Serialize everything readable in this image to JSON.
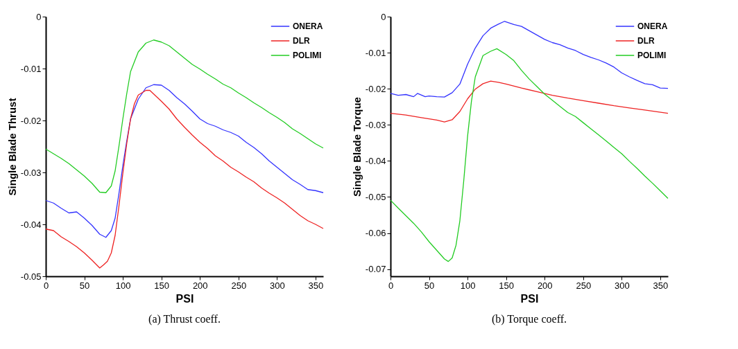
{
  "chart_data": [
    {
      "type": "line",
      "xlabel": "PSI",
      "ylabel": "Single Blade Thrust",
      "annotations": [
        "(a)  Thrust coeff."
      ],
      "xlim": [
        0,
        360
      ],
      "xticks": [
        0,
        50,
        100,
        150,
        200,
        250,
        300,
        350
      ],
      "ylim": [
        -0.05,
        0
      ],
      "yticks": [
        -0.05,
        -0.04,
        -0.03,
        -0.02,
        -0.01,
        0
      ],
      "grid": false,
      "legend": "top right",
      "line_style": "solid",
      "series": [
        {
          "name": "ONERA",
          "color": "#3333ff",
          "x": [
            0,
            10,
            20,
            30,
            40,
            50,
            60,
            70,
            78,
            85,
            90,
            95,
            100,
            105,
            110,
            120,
            130,
            140,
            150,
            160,
            170,
            180,
            190,
            200,
            210,
            220,
            230,
            240,
            250,
            260,
            270,
            280,
            290,
            300,
            310,
            320,
            330,
            340,
            350,
            360
          ],
          "values": [
            -0.0354,
            -0.0359,
            -0.0369,
            -0.0378,
            -0.0376,
            -0.0388,
            -0.0402,
            -0.0419,
            -0.0425,
            -0.0412,
            -0.0388,
            -0.034,
            -0.0287,
            -0.024,
            -0.0197,
            -0.0159,
            -0.0137,
            -0.0131,
            -0.0132,
            -0.0142,
            -0.0156,
            -0.0168,
            -0.0182,
            -0.0197,
            -0.0206,
            -0.0211,
            -0.0218,
            -0.0223,
            -0.023,
            -0.0242,
            -0.0252,
            -0.0264,
            -0.0278,
            -0.029,
            -0.0302,
            -0.0314,
            -0.0323,
            -0.0333,
            -0.0335,
            -0.0339
          ]
        },
        {
          "name": "DLR",
          "color": "#ee2222",
          "x": [
            0,
            10,
            20,
            30,
            40,
            50,
            60,
            70,
            75,
            80,
            85,
            90,
            95,
            100,
            105,
            110,
            115,
            120,
            130,
            135,
            140,
            150,
            160,
            170,
            180,
            190,
            200,
            210,
            220,
            230,
            240,
            250,
            260,
            270,
            280,
            290,
            300,
            310,
            320,
            330,
            340,
            350,
            360
          ],
          "values": [
            -0.0409,
            -0.0412,
            -0.0424,
            -0.0433,
            -0.0443,
            -0.0455,
            -0.0469,
            -0.0484,
            -0.0478,
            -0.0471,
            -0.0455,
            -0.0421,
            -0.0364,
            -0.0302,
            -0.0245,
            -0.0197,
            -0.0168,
            -0.0151,
            -0.0142,
            -0.0142,
            -0.0149,
            -0.0163,
            -0.0178,
            -0.0197,
            -0.0213,
            -0.0228,
            -0.0242,
            -0.0254,
            -0.0268,
            -0.0278,
            -0.029,
            -0.0299,
            -0.0309,
            -0.0318,
            -0.033,
            -0.034,
            -0.0349,
            -0.0359,
            -0.0371,
            -0.0383,
            -0.0393,
            -0.04,
            -0.0408
          ]
        },
        {
          "name": "POLIMI",
          "color": "#22cc22",
          "x": [
            0,
            10,
            20,
            30,
            40,
            50,
            60,
            70,
            78,
            85,
            90,
            95,
            100,
            105,
            110,
            120,
            130,
            140,
            150,
            160,
            170,
            180,
            190,
            200,
            210,
            220,
            230,
            240,
            250,
            260,
            270,
            280,
            290,
            300,
            310,
            320,
            330,
            340,
            350,
            360
          ],
          "values": [
            -0.0255,
            -0.0264,
            -0.0273,
            -0.0283,
            -0.0295,
            -0.0307,
            -0.0321,
            -0.0338,
            -0.0339,
            -0.0326,
            -0.0297,
            -0.0249,
            -0.0197,
            -0.0149,
            -0.0106,
            -0.0068,
            -0.0051,
            -0.0045,
            -0.0049,
            -0.0056,
            -0.0068,
            -0.008,
            -0.0092,
            -0.0101,
            -0.0111,
            -0.012,
            -0.013,
            -0.0137,
            -0.0147,
            -0.0156,
            -0.0166,
            -0.0175,
            -0.0185,
            -0.0194,
            -0.0204,
            -0.0216,
            -0.0225,
            -0.0235,
            -0.0245,
            -0.0253
          ]
        }
      ]
    },
    {
      "type": "line",
      "xlabel": "PSI",
      "ylabel": "Single Blade Torque",
      "annotations": [
        "(b)  Torque coeff."
      ],
      "xlim": [
        0,
        360
      ],
      "xticks": [
        0,
        50,
        100,
        150,
        200,
        250,
        300,
        350
      ],
      "ylim": [
        -0.072,
        0
      ],
      "yticks": [
        -0.07,
        -0.06,
        -0.05,
        -0.04,
        -0.03,
        -0.02,
        -0.01,
        0
      ],
      "grid": false,
      "legend": "top right",
      "line_style": "solid",
      "series": [
        {
          "name": "ONERA",
          "color": "#3333ff",
          "x": [
            0,
            10,
            20,
            30,
            35,
            45,
            50,
            60,
            70,
            80,
            90,
            100,
            110,
            120,
            130,
            140,
            148,
            160,
            170,
            180,
            190,
            200,
            210,
            220,
            230,
            240,
            250,
            260,
            270,
            280,
            290,
            300,
            310,
            320,
            330,
            340,
            350,
            360
          ],
          "values": [
            -0.0213,
            -0.0218,
            -0.0216,
            -0.0222,
            -0.0213,
            -0.0222,
            -0.022,
            -0.0222,
            -0.0223,
            -0.0211,
            -0.0187,
            -0.0132,
            -0.0087,
            -0.0053,
            -0.0032,
            -0.0021,
            -0.0013,
            -0.0022,
            -0.0027,
            -0.0039,
            -0.0051,
            -0.0063,
            -0.0072,
            -0.0078,
            -0.0087,
            -0.0094,
            -0.0105,
            -0.0113,
            -0.012,
            -0.0129,
            -0.014,
            -0.0156,
            -0.0167,
            -0.0177,
            -0.0186,
            -0.0189,
            -0.0198,
            -0.0199
          ]
        },
        {
          "name": "DLR",
          "color": "#ee2222",
          "x": [
            0,
            20,
            40,
            60,
            70,
            80,
            90,
            100,
            110,
            120,
            130,
            140,
            150,
            170,
            190,
            210,
            230,
            250,
            270,
            290,
            310,
            330,
            360
          ],
          "values": [
            -0.0268,
            -0.0273,
            -0.028,
            -0.0287,
            -0.0292,
            -0.0286,
            -0.0263,
            -0.0228,
            -0.0201,
            -0.0186,
            -0.0179,
            -0.0182,
            -0.0187,
            -0.0198,
            -0.0208,
            -0.0218,
            -0.0226,
            -0.0233,
            -0.024,
            -0.0247,
            -0.0253,
            -0.0259,
            -0.0268
          ]
        },
        {
          "name": "POLIMI",
          "color": "#22cc22",
          "x": [
            0,
            10,
            20,
            30,
            40,
            50,
            60,
            70,
            75,
            80,
            85,
            90,
            95,
            100,
            105,
            110,
            120,
            130,
            138,
            150,
            160,
            170,
            180,
            190,
            200,
            210,
            220,
            230,
            240,
            250,
            260,
            270,
            280,
            290,
            300,
            310,
            320,
            330,
            340,
            350,
            360
          ],
          "values": [
            -0.0509,
            -0.0531,
            -0.0552,
            -0.0573,
            -0.0597,
            -0.0624,
            -0.0648,
            -0.0672,
            -0.0679,
            -0.0669,
            -0.0634,
            -0.0566,
            -0.0456,
            -0.0332,
            -0.0235,
            -0.0167,
            -0.0108,
            -0.0096,
            -0.0089,
            -0.0105,
            -0.0122,
            -0.0149,
            -0.0173,
            -0.0194,
            -0.0215,
            -0.0232,
            -0.0249,
            -0.0266,
            -0.0277,
            -0.0294,
            -0.0311,
            -0.0328,
            -0.0345,
            -0.0363,
            -0.038,
            -0.0401,
            -0.0421,
            -0.0442,
            -0.0462,
            -0.0483,
            -0.0504
          ]
        }
      ]
    }
  ]
}
